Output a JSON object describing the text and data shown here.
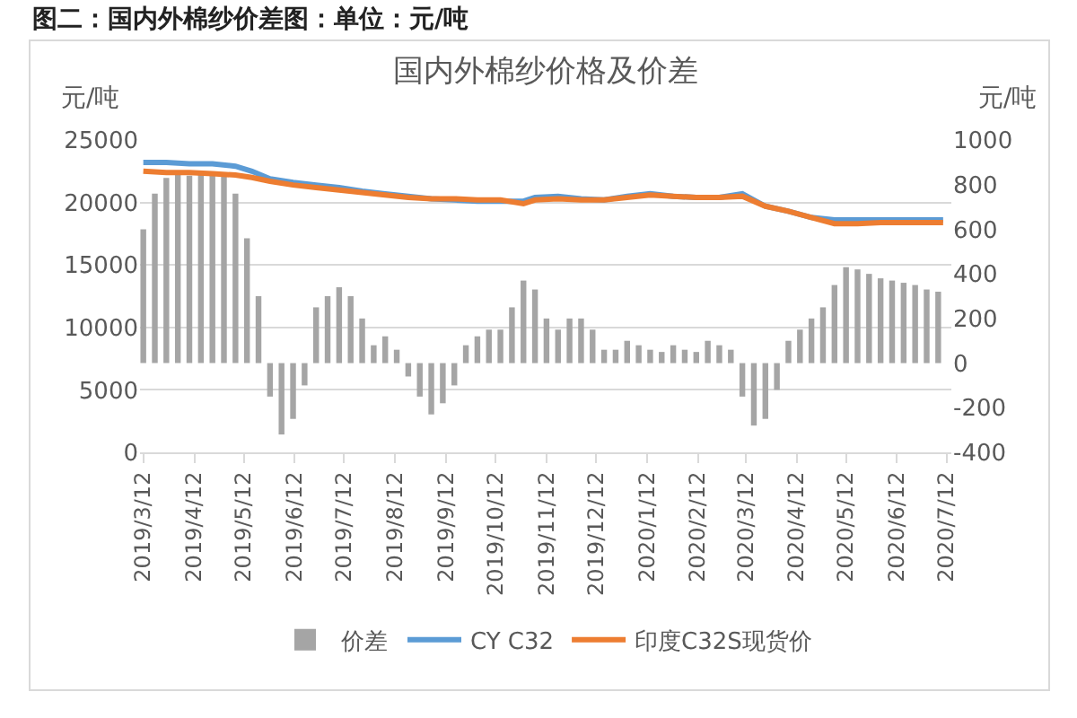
{
  "chart_data": {
    "type": "line",
    "title": "国内外棉纱价格及价差",
    "ylabel": "元/吨",
    "y2label": "元/吨",
    "annotations": [
      "图二：国内外棉纱价差图：单位：元/吨"
    ],
    "xlim": [
      "2019-03-10",
      "2020-07-15"
    ],
    "xticks": [
      {
        "value": "2019-03-12",
        "label": "2019/3/12"
      },
      {
        "value": "2019-04-12",
        "label": "2019/4/12"
      },
      {
        "value": "2019-05-12",
        "label": "2019/5/12"
      },
      {
        "value": "2019-06-12",
        "label": "2019/6/12"
      },
      {
        "value": "2019-07-12",
        "label": "2019/7/12"
      },
      {
        "value": "2019-08-12",
        "label": "2019/8/12"
      },
      {
        "value": "2019-09-12",
        "label": "2019/9/12"
      },
      {
        "value": "2019-10-12",
        "label": "2019/10/12"
      },
      {
        "value": "2019-11-12",
        "label": "2019/11/12"
      },
      {
        "value": "2019-12-12",
        "label": "2019/12/12"
      },
      {
        "value": "2020-01-12",
        "label": "2020/1/12"
      },
      {
        "value": "2020-02-12",
        "label": "2020/2/12"
      },
      {
        "value": "2020-03-12",
        "label": "2020/3/12"
      },
      {
        "value": "2020-04-12",
        "label": "2020/4/12"
      },
      {
        "value": "2020-05-12",
        "label": "2020/5/12"
      },
      {
        "value": "2020-06-12",
        "label": "2020/6/12"
      },
      {
        "value": "2020-07-12",
        "label": "2020/7/12"
      }
    ],
    "ylim": [
      0,
      25000
    ],
    "yticks": [
      0,
      5000,
      10000,
      15000,
      20000,
      25000
    ],
    "y2lim": [
      -400,
      1000
    ],
    "y2ticks": [
      -400,
      -200,
      0,
      200,
      400,
      600,
      800,
      1000
    ],
    "grid": "y",
    "legend": "bottom",
    "series": [
      {
        "name": "价差",
        "type": "bar",
        "axis": "y2",
        "color": "#a5a5a5",
        "x": [
          "2019-03-12",
          "2019-03-19",
          "2019-03-26",
          "2019-04-02",
          "2019-04-09",
          "2019-04-16",
          "2019-04-23",
          "2019-04-30",
          "2019-05-07",
          "2019-05-14",
          "2019-05-21",
          "2019-05-28",
          "2019-06-04",
          "2019-06-11",
          "2019-06-18",
          "2019-06-25",
          "2019-07-02",
          "2019-07-09",
          "2019-07-16",
          "2019-07-23",
          "2019-07-30",
          "2019-08-06",
          "2019-08-13",
          "2019-08-20",
          "2019-08-27",
          "2019-09-03",
          "2019-09-10",
          "2019-09-17",
          "2019-09-24",
          "2019-10-01",
          "2019-10-08",
          "2019-10-15",
          "2019-10-22",
          "2019-10-29",
          "2019-11-05",
          "2019-11-12",
          "2019-11-19",
          "2019-11-26",
          "2019-12-03",
          "2019-12-10",
          "2019-12-17",
          "2019-12-24",
          "2019-12-31",
          "2020-01-07",
          "2020-01-14",
          "2020-01-21",
          "2020-01-28",
          "2020-02-04",
          "2020-02-11",
          "2020-02-18",
          "2020-02-25",
          "2020-03-03",
          "2020-03-10",
          "2020-03-17",
          "2020-03-24",
          "2020-03-31",
          "2020-04-07",
          "2020-04-14",
          "2020-04-21",
          "2020-04-28",
          "2020-05-05",
          "2020-05-12",
          "2020-05-19",
          "2020-05-26",
          "2020-06-02",
          "2020-06-09",
          "2020-06-16",
          "2020-06-23",
          "2020-06-30",
          "2020-07-07"
        ],
        "values": [
          600,
          760,
          830,
          850,
          840,
          860,
          850,
          840,
          760,
          560,
          300,
          -150,
          -320,
          -250,
          -100,
          250,
          300,
          340,
          300,
          200,
          80,
          120,
          60,
          -60,
          -150,
          -230,
          -180,
          -100,
          80,
          120,
          150,
          150,
          250,
          370,
          330,
          200,
          150,
          200,
          200,
          150,
          60,
          60,
          100,
          80,
          60,
          50,
          80,
          60,
          50,
          100,
          80,
          60,
          -150,
          -280,
          -250,
          -120,
          100,
          150,
          200,
          250,
          350,
          430,
          420,
          400,
          380,
          370,
          360,
          350,
          330,
          320
        ]
      },
      {
        "name": "CY C32",
        "color": "#5b9bd5",
        "x": [
          "2019-03-12",
          "2019-03-26",
          "2019-04-09",
          "2019-04-23",
          "2019-05-07",
          "2019-05-17",
          "2019-05-28",
          "2019-06-11",
          "2019-06-25",
          "2019-07-09",
          "2019-07-23",
          "2019-08-06",
          "2019-08-20",
          "2019-09-03",
          "2019-09-17",
          "2019-10-01",
          "2019-10-15",
          "2019-10-29",
          "2019-11-05",
          "2019-11-19",
          "2019-12-03",
          "2019-12-17",
          "2019-12-31",
          "2020-01-14",
          "2020-01-28",
          "2020-02-11",
          "2020-02-25",
          "2020-03-10",
          "2020-03-24",
          "2020-04-07",
          "2020-04-21",
          "2020-05-05",
          "2020-05-19",
          "2020-06-02",
          "2020-06-16",
          "2020-06-30",
          "2020-07-10"
        ],
        "values": [
          23200,
          23200,
          23100,
          23100,
          22900,
          22500,
          21900,
          21600,
          21400,
          21200,
          20900,
          20700,
          20500,
          20300,
          20200,
          20100,
          20100,
          20100,
          20400,
          20500,
          20300,
          20200,
          20500,
          20700,
          20500,
          20400,
          20400,
          20700,
          19700,
          19300,
          18800,
          18600,
          18600,
          18600,
          18600,
          18600,
          18600
        ]
      },
      {
        "name": "印度C32S现货价",
        "color": "#ed7d31",
        "x": [
          "2019-03-12",
          "2019-03-26",
          "2019-04-09",
          "2019-04-23",
          "2019-05-07",
          "2019-05-17",
          "2019-05-28",
          "2019-06-11",
          "2019-06-25",
          "2019-07-09",
          "2019-07-23",
          "2019-08-06",
          "2019-08-20",
          "2019-09-03",
          "2019-09-17",
          "2019-10-01",
          "2019-10-15",
          "2019-10-29",
          "2019-11-05",
          "2019-11-19",
          "2019-12-03",
          "2019-12-17",
          "2019-12-31",
          "2020-01-14",
          "2020-01-28",
          "2020-02-11",
          "2020-02-25",
          "2020-03-10",
          "2020-03-24",
          "2020-04-07",
          "2020-04-21",
          "2020-05-05",
          "2020-05-19",
          "2020-06-02",
          "2020-06-16",
          "2020-06-30",
          "2020-07-10"
        ],
        "values": [
          22500,
          22400,
          22400,
          22300,
          22200,
          22000,
          21700,
          21400,
          21200,
          21000,
          20800,
          20600,
          20400,
          20300,
          20300,
          20200,
          20200,
          19900,
          20200,
          20300,
          20200,
          20200,
          20400,
          20600,
          20500,
          20400,
          20400,
          20500,
          19700,
          19300,
          18800,
          18300,
          18300,
          18400,
          18400,
          18400,
          18400
        ]
      }
    ]
  }
}
